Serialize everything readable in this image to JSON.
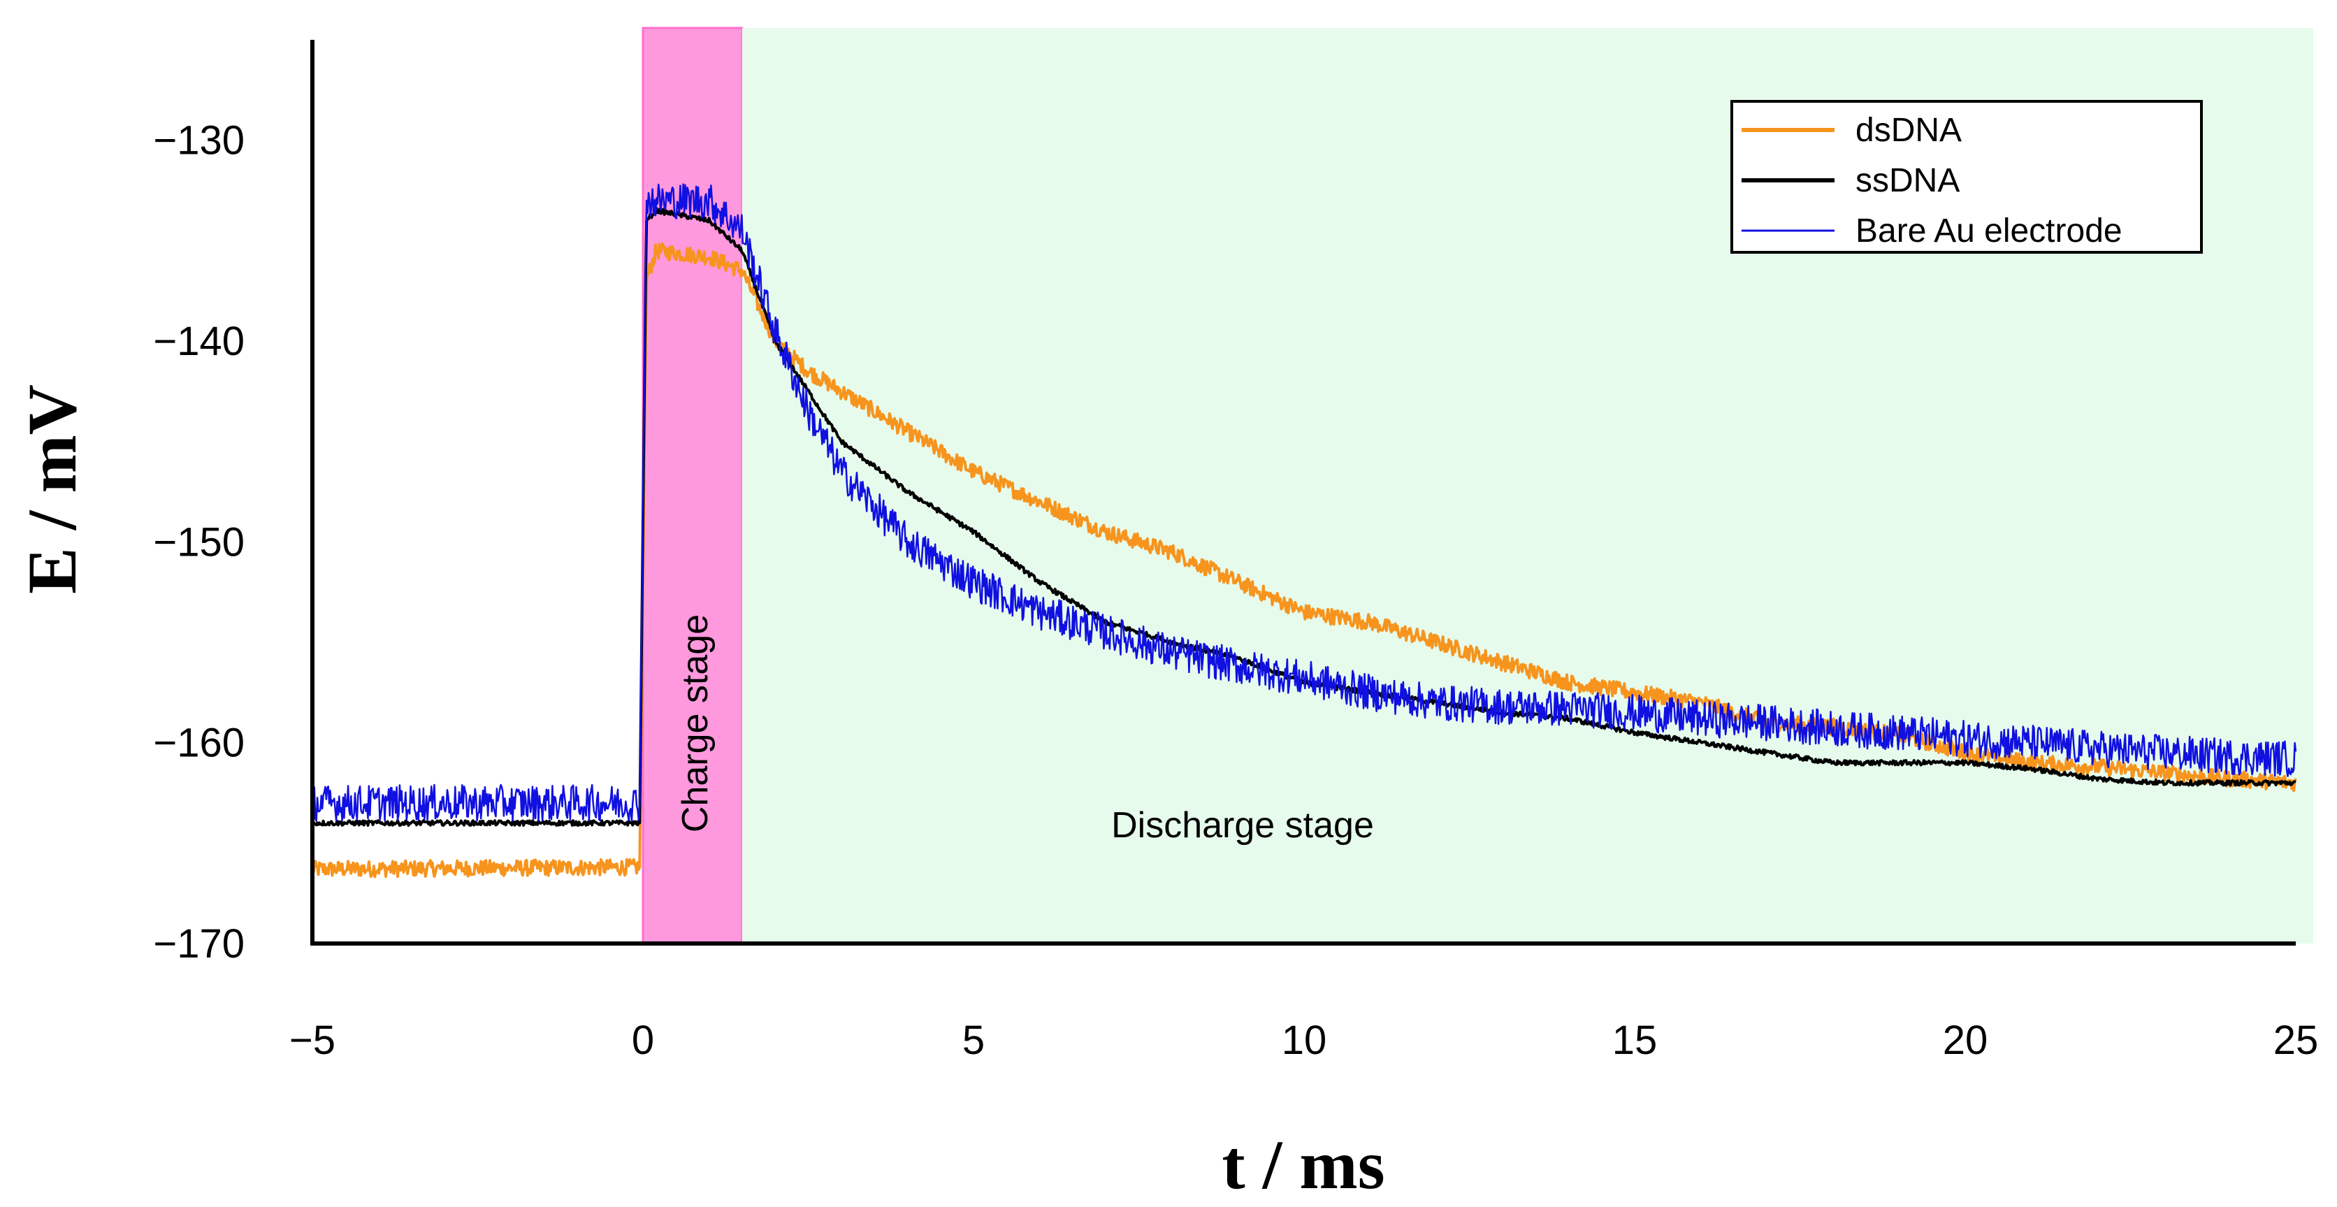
{
  "chart_data": {
    "type": "line",
    "xlabel": "t / ms",
    "ylabel": "E / mV",
    "xlim": [
      -5,
      25
    ],
    "ylim": [
      -170,
      -125
    ],
    "xticks": [
      -5,
      0,
      5,
      10,
      15,
      20,
      25
    ],
    "xtick_labels": [
      "−5",
      "0",
      "5",
      "10",
      "15",
      "20",
      "25"
    ],
    "yticks": [
      -170,
      -160,
      -150,
      -140,
      -130
    ],
    "ytick_labels": [
      "−170",
      "−160",
      "−150",
      "−140",
      "−130"
    ],
    "regions": [
      {
        "name": "charge",
        "label": "Charge stage",
        "x_start": 0,
        "x_end": 1.5,
        "color": "#ff99dd"
      },
      {
        "name": "discharge",
        "label": "Discharge stage",
        "x_start": 1.5,
        "x_end": 25,
        "color": "#e6fbec"
      }
    ],
    "legend": {
      "position": "top-right"
    },
    "series": [
      {
        "name": "dsDNA",
        "color": "#f7941d",
        "noise": 0.4,
        "x": [
          -5,
          -0.05,
          0.05,
          0.2,
          1.0,
          1.5,
          2,
          2.5,
          3,
          4,
          5,
          6,
          7,
          8,
          9,
          10,
          11,
          12,
          13,
          14,
          15,
          16,
          17,
          18,
          19,
          20,
          21,
          22,
          23,
          24,
          25
        ],
        "y": [
          -166.3,
          -166.2,
          -137,
          -135.5,
          -135.8,
          -136.5,
          -140,
          -141.5,
          -142.5,
          -144.5,
          -146.5,
          -148,
          -149.5,
          -150.5,
          -152,
          -153.5,
          -154,
          -155,
          -156,
          -157,
          -157.5,
          -158,
          -159,
          -159.2,
          -159.6,
          -160.5,
          -161,
          -161.2,
          -161.5,
          -161.8,
          -162
        ]
      },
      {
        "name": "ssDNA",
        "color": "#000000",
        "noise": 0.12,
        "x": [
          -5,
          -0.05,
          0.05,
          0.2,
          1.0,
          1.5,
          2,
          2.5,
          3,
          4,
          5,
          6,
          7,
          8,
          9,
          10,
          11,
          12,
          13,
          14,
          15,
          16,
          17,
          18,
          19,
          20,
          21,
          22,
          23,
          24,
          25
        ],
        "y": [
          -164,
          -164,
          -134,
          -133.5,
          -134,
          -135.5,
          -140,
          -142.5,
          -145,
          -147.5,
          -149.5,
          -152,
          -154,
          -155,
          -155.8,
          -157,
          -157.5,
          -158,
          -158.5,
          -158.8,
          -159.5,
          -160,
          -160.5,
          -161,
          -161,
          -161,
          -161.3,
          -161.8,
          -162,
          -162,
          -162
        ]
      },
      {
        "name": "Bare Au electrode",
        "color": "#1010e0",
        "noise": 0.9,
        "x": [
          -5,
          -0.05,
          0.05,
          0.2,
          1.0,
          1.5,
          2,
          2.5,
          3,
          4,
          5,
          6,
          7,
          8,
          9,
          10,
          11,
          12,
          13,
          14,
          15,
          16,
          17,
          18,
          19,
          20,
          21,
          22,
          23,
          24,
          25
        ],
        "y": [
          -163,
          -163,
          -133,
          -133,
          -133,
          -134.5,
          -139.5,
          -143.5,
          -146.5,
          -150,
          -152,
          -153.5,
          -154.5,
          -155.5,
          -156.2,
          -156.8,
          -157.5,
          -158,
          -158.2,
          -158.3,
          -158.5,
          -158.8,
          -159,
          -159.3,
          -159.5,
          -159.8,
          -160,
          -160.3,
          -160.5,
          -160.7,
          -160.8
        ]
      }
    ]
  }
}
